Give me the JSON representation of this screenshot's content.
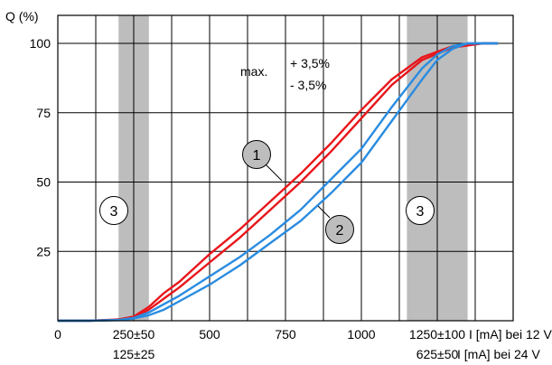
{
  "chart_data": {
    "type": "line",
    "ylabel": "Q (%)",
    "xlim": [
      0,
      1000
    ],
    "ylim": [
      0,
      100
    ],
    "y_ticks": [
      "25",
      "50",
      "75",
      "100"
    ],
    "x_ticks": [
      {
        "value": 0,
        "label": "0"
      },
      {
        "value": 250,
        "label": "250±50"
      },
      {
        "value": 500,
        "label": "500"
      },
      {
        "value": 750,
        "label": "750"
      },
      {
        "value": 1000,
        "label": "1000"
      },
      {
        "value": 1250,
        "label": "1250±100"
      }
    ],
    "x_ticks_secondary": [
      {
        "value": 250,
        "label": "125±25"
      },
      {
        "value": 1250,
        "label": "625±50"
      }
    ],
    "x_unit_labels": [
      "I [mA] bei 12 V",
      "I [mA] bei 24 V"
    ],
    "tolerance_zones": [
      {
        "label": "3",
        "from": 200,
        "to": 300
      },
      {
        "label": "3",
        "from": 1150,
        "to": 1350
      }
    ],
    "grid": true,
    "annotation": {
      "prefix": "max.",
      "lines": [
        "+ 3,5%",
        "- 3,5%"
      ]
    },
    "series": [
      {
        "label": "1",
        "color": "#e8161b",
        "upper": [
          [
            0,
            0
          ],
          [
            100,
            0
          ],
          [
            200,
            0.5
          ],
          [
            250,
            1.5
          ],
          [
            300,
            5
          ],
          [
            350,
            10
          ],
          [
            400,
            14
          ],
          [
            500,
            24
          ],
          [
            600,
            33
          ],
          [
            700,
            43
          ],
          [
            800,
            53
          ],
          [
            900,
            64
          ],
          [
            1000,
            76
          ],
          [
            1100,
            87
          ],
          [
            1200,
            95
          ],
          [
            1300,
            99
          ],
          [
            1400,
            100
          ],
          [
            1450,
            100
          ]
        ],
        "lower": [
          [
            0,
            0
          ],
          [
            100,
            0
          ],
          [
            200,
            0.3
          ],
          [
            250,
            1
          ],
          [
            300,
            4
          ],
          [
            350,
            8
          ],
          [
            400,
            12
          ],
          [
            500,
            21
          ],
          [
            600,
            30
          ],
          [
            700,
            40
          ],
          [
            800,
            50
          ],
          [
            900,
            61
          ],
          [
            1000,
            73
          ],
          [
            1100,
            85
          ],
          [
            1200,
            94
          ],
          [
            1300,
            98.5
          ],
          [
            1400,
            100
          ],
          [
            1450,
            100
          ]
        ]
      },
      {
        "label": "2",
        "color": "#2a8ce0",
        "upper": [
          [
            0,
            0
          ],
          [
            100,
            0
          ],
          [
            200,
            0.3
          ],
          [
            250,
            1
          ],
          [
            300,
            3
          ],
          [
            350,
            6
          ],
          [
            400,
            9
          ],
          [
            500,
            16
          ],
          [
            600,
            23
          ],
          [
            700,
            31
          ],
          [
            800,
            40
          ],
          [
            900,
            51
          ],
          [
            1000,
            62
          ],
          [
            1100,
            77
          ],
          [
            1200,
            91
          ],
          [
            1250,
            96
          ],
          [
            1300,
            99
          ],
          [
            1350,
            100
          ],
          [
            1450,
            100
          ]
        ],
        "lower": [
          [
            0,
            0
          ],
          [
            100,
            0
          ],
          [
            200,
            0.2
          ],
          [
            250,
            0.8
          ],
          [
            300,
            2
          ],
          [
            350,
            4
          ],
          [
            400,
            7
          ],
          [
            500,
            13
          ],
          [
            600,
            20
          ],
          [
            700,
            28
          ],
          [
            800,
            36
          ],
          [
            900,
            46
          ],
          [
            1000,
            57
          ],
          [
            1100,
            72
          ],
          [
            1200,
            87
          ],
          [
            1250,
            94
          ],
          [
            1300,
            98
          ],
          [
            1350,
            100
          ],
          [
            1450,
            100
          ]
        ]
      }
    ]
  }
}
